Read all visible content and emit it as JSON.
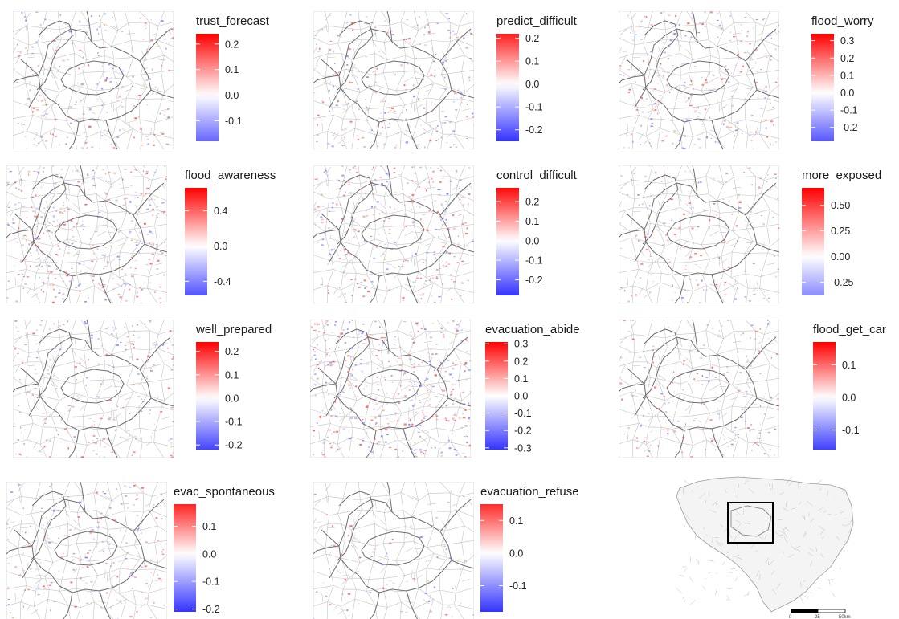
{
  "panels": [
    {
      "title": "trust_forecast",
      "min": -0.18,
      "max": 0.24,
      "ticks": [
        0.2,
        0.1,
        0.0,
        -0.1
      ],
      "tick_labels": [
        "0.2",
        "0.1",
        "0.0",
        "-0.1"
      ],
      "intensity": 1.0
    },
    {
      "title": "predict_difficult",
      "min": -0.25,
      "max": 0.22,
      "ticks": [
        0.2,
        0.1,
        0.0,
        -0.1,
        -0.2
      ],
      "tick_labels": [
        "0.2",
        "0.1",
        "0.0",
        "-0.1",
        "-0.2"
      ],
      "intensity": 1.0
    },
    {
      "title": "flood_worry",
      "min": -0.28,
      "max": 0.34,
      "ticks": [
        0.3,
        0.2,
        0.1,
        0.0,
        -0.1,
        -0.2
      ],
      "tick_labels": [
        "0.3",
        "0.2",
        "0.1",
        "0.0",
        "-0.1",
        "-0.2"
      ],
      "intensity": 1.1
    },
    {
      "title": "flood_awareness",
      "min": -0.56,
      "max": 0.66,
      "ticks": [
        0.4,
        0.0,
        -0.4
      ],
      "tick_labels": [
        "0.4",
        "0.0",
        "-0.4"
      ],
      "intensity": 1.6
    },
    {
      "title": "control_difficult",
      "min": -0.28,
      "max": 0.27,
      "ticks": [
        0.2,
        0.1,
        0.0,
        -0.1,
        -0.2
      ],
      "tick_labels": [
        "0.2",
        "0.1",
        "0.0",
        "-0.1",
        "-0.2"
      ],
      "intensity": 1.4
    },
    {
      "title": "more_exposed",
      "min": -0.38,
      "max": 0.67,
      "ticks": [
        0.5,
        0.25,
        0.0,
        -0.25
      ],
      "tick_labels": [
        "0.50",
        "0.25",
        "0.00",
        "-0.25"
      ],
      "intensity": 0.7
    },
    {
      "title": "well_prepared",
      "min": -0.22,
      "max": 0.24,
      "ticks": [
        0.2,
        0.1,
        0.0,
        -0.1,
        -0.2
      ],
      "tick_labels": [
        "0.2",
        "0.1",
        "0.0",
        "-0.1",
        "-0.2"
      ],
      "intensity": 0.9
    },
    {
      "title": "evacuation_abide",
      "min": -0.31,
      "max": 0.31,
      "ticks": [
        0.3,
        0.2,
        0.1,
        0.0,
        -0.1,
        -0.2,
        -0.3
      ],
      "tick_labels": [
        "0.3",
        "0.2",
        "0.1",
        "0.0",
        "-0.1",
        "-0.2",
        "-0.3"
      ],
      "intensity": 2.0
    },
    {
      "title": "flood_get_car",
      "min": -0.16,
      "max": 0.17,
      "ticks": [
        0.1,
        0.0,
        -0.1
      ],
      "tick_labels": [
        "0.1",
        "0.0",
        "-0.1"
      ],
      "intensity": 0.8
    },
    {
      "title": "evac_spontaneous",
      "min": -0.21,
      "max": 0.18,
      "ticks": [
        0.1,
        0.0,
        -0.1,
        -0.2
      ],
      "tick_labels": [
        "0.1",
        "0.0",
        "-0.1",
        "-0.2"
      ],
      "intensity": 0.8
    },
    {
      "title": "evacuation_refuse",
      "min": -0.18,
      "max": 0.15,
      "ticks": [
        0.1,
        0.0,
        -0.1
      ],
      "tick_labels": [
        "0.1",
        "0.0",
        "-0.1"
      ],
      "intensity": 0.3
    }
  ],
  "colors": {
    "low": "#3333ff",
    "mid": "#ffffff",
    "high": "#ff0000",
    "boundary": "#b5b5b5",
    "dept": "#6e6e6e",
    "inset_box": "#000000"
  },
  "inset": {
    "scale_labels": [
      "0",
      "25",
      "50km"
    ]
  }
}
